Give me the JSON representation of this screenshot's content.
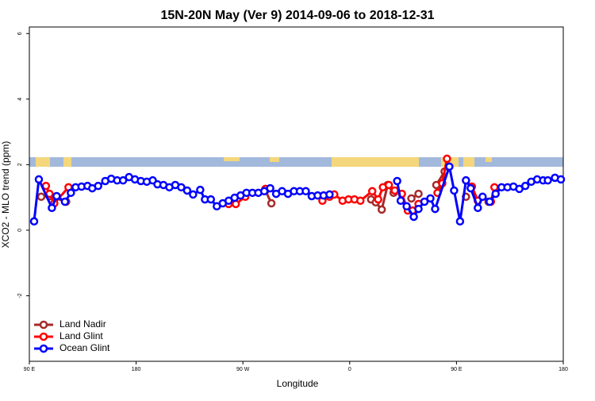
{
  "chart_data": {
    "type": "line",
    "title": "15N-20N May (Ver 9)   2014-09-06 to 2018-12-31",
    "x_label": "Longitude",
    "y_label": "XCO2 - MLO trend (ppm)",
    "xlim": [
      90,
      540
    ],
    "xticks": [
      {
        "value": 90,
        "label": "90 E"
      },
      {
        "value": 180,
        "label": "180"
      },
      {
        "value": 270,
        "label": "90 W"
      },
      {
        "value": 360,
        "label": "0"
      },
      {
        "value": 450,
        "label": "90 E"
      },
      {
        "value": 540,
        "label": "180"
      }
    ],
    "ylim": [
      -4,
      6.2
    ],
    "yticks": [
      -2,
      0,
      2,
      4,
      6
    ],
    "legend": "bottom-left",
    "series": [
      {
        "name": "Land Nadir",
        "color": "#a52a2a",
        "x": [
          100,
          107,
          121,
          null,
          289,
          294,
          null,
          378,
          382,
          387,
          392,
          397,
          null,
          412,
          418,
          null,
          433,
          440,
          null,
          458,
          null,
          477
        ],
        "values": [
          1.02,
          1.04,
          0.87,
          null,
          1.21,
          0.82,
          null,
          0.94,
          0.85,
          0.63,
          1.38,
          1.14,
          null,
          0.97,
          1.11,
          null,
          1.38,
          1.79,
          null,
          1.02,
          null,
          0.87
        ]
      },
      {
        "name": "Land Glint",
        "color": "#ff0000",
        "x": [
          104,
          107,
          111,
          123,
          null,
          258,
          264,
          272,
          null,
          289,
          null,
          337,
          343,
          347,
          354,
          359,
          364,
          369,
          379,
          384,
          388,
          393,
          398,
          404,
          409,
          413,
          418,
          null,
          434,
          438,
          442,
          null,
          458,
          463,
          468,
          null,
          479,
          482
        ],
        "values": [
          1.35,
          1.11,
          0.82,
          1.31,
          null,
          0.8,
          0.8,
          1.02,
          null,
          1.26,
          null,
          0.9,
          1.02,
          1.09,
          0.9,
          0.94,
          0.94,
          0.9,
          1.19,
          0.94,
          1.31,
          1.38,
          1.21,
          1.11,
          0.6,
          0.6,
          0.8,
          null,
          1.14,
          1.43,
          2.18,
          null,
          1.52,
          1.33,
          0.9,
          null,
          0.87,
          1.31
        ]
      },
      {
        "name": "Ocean Glint",
        "color": "#0000ff",
        "x": [
          94,
          98,
          109,
          113,
          120,
          125,
          129,
          134,
          139,
          143,
          148,
          154,
          159,
          164,
          169,
          174,
          179,
          184,
          189,
          194,
          198,
          203,
          208,
          213,
          218,
          223,
          228,
          234,
          238,
          243,
          248,
          253,
          258,
          263,
          268,
          273,
          278,
          283,
          288,
          293,
          298,
          303,
          308,
          313,
          318,
          323,
          328,
          333,
          338,
          343,
          null,
          400,
          403,
          408,
          414,
          418,
          423,
          428,
          432,
          444,
          448,
          453,
          458,
          462,
          468,
          472,
          478,
          483,
          488,
          493,
          498,
          503,
          508,
          513,
          518,
          523,
          527,
          533,
          538
        ],
        "values": [
          0.27,
          1.55,
          0.68,
          1.04,
          0.87,
          1.14,
          1.31,
          1.33,
          1.35,
          1.28,
          1.35,
          1.5,
          1.57,
          1.52,
          1.52,
          1.62,
          1.55,
          1.5,
          1.48,
          1.52,
          1.4,
          1.38,
          1.31,
          1.38,
          1.31,
          1.21,
          1.09,
          1.23,
          0.94,
          0.94,
          0.73,
          0.82,
          0.9,
          0.99,
          1.06,
          1.14,
          1.14,
          1.14,
          1.19,
          1.28,
          1.11,
          1.19,
          1.11,
          1.19,
          1.19,
          1.19,
          1.04,
          1.06,
          1.06,
          1.09,
          null,
          1.5,
          0.9,
          0.73,
          0.41,
          0.65,
          0.87,
          0.97,
          0.65,
          1.94,
          1.21,
          0.27,
          1.52,
          1.28,
          0.68,
          1.02,
          0.87,
          1.11,
          1.31,
          1.31,
          1.33,
          1.26,
          1.35,
          1.48,
          1.55,
          1.52,
          1.52,
          1.6,
          1.55
        ]
      }
    ]
  }
}
